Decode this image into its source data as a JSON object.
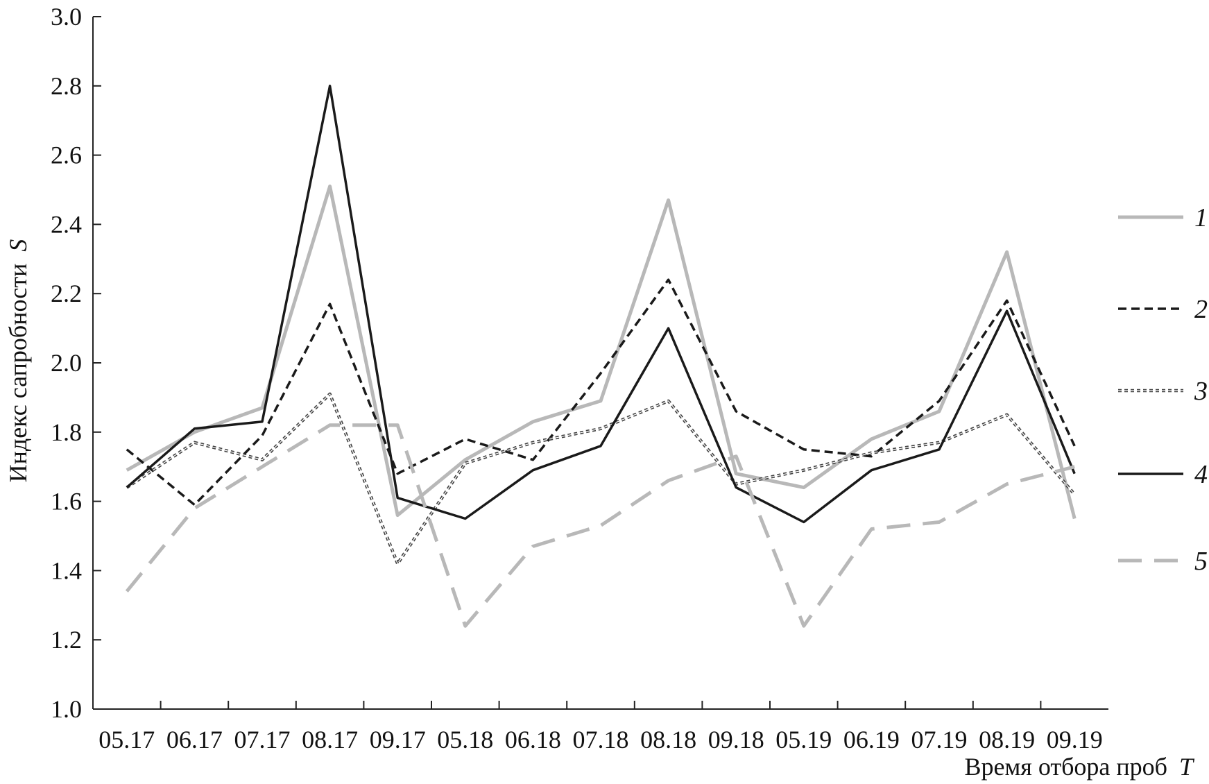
{
  "chart_data": {
    "type": "line",
    "xlabel": "Время отбора проб",
    "xlabel_var": "T",
    "ylabel": "Индекс сапробности",
    "ylabel_var": "S",
    "categories": [
      "05.17",
      "06.17",
      "07.17",
      "08.17",
      "09.17",
      "05.18",
      "06.18",
      "07.18",
      "08.18",
      "09.18",
      "05.19",
      "06.19",
      "07.19",
      "08.19",
      "09.19"
    ],
    "ylim": [
      1.0,
      3.0
    ],
    "yticks": [
      "1.0",
      "1.2",
      "1.4",
      "1.6",
      "1.8",
      "2.0",
      "2.2",
      "2.4",
      "2.6",
      "2.8",
      "3.0"
    ],
    "grid": false,
    "legend_position": "right",
    "series": [
      {
        "name": "1",
        "color": "#b8b8b8",
        "style": "solid-thick",
        "values": [
          1.69,
          1.8,
          1.87,
          2.51,
          1.56,
          1.72,
          1.83,
          1.89,
          2.47,
          1.68,
          1.64,
          1.78,
          1.86,
          2.32,
          1.55
        ]
      },
      {
        "name": "2",
        "color": "#1a1a1a",
        "style": "dashed",
        "values": [
          1.75,
          1.59,
          1.79,
          2.17,
          1.68,
          1.78,
          1.72,
          1.97,
          2.24,
          1.86,
          1.75,
          1.73,
          1.89,
          2.18,
          1.76
        ]
      },
      {
        "name": "3",
        "color": "#444444",
        "style": "dotted-thin",
        "values": [
          1.64,
          1.77,
          1.72,
          1.91,
          1.42,
          1.71,
          1.77,
          1.81,
          1.89,
          1.65,
          1.69,
          1.74,
          1.77,
          1.85,
          1.62
        ]
      },
      {
        "name": "4",
        "color": "#1a1a1a",
        "style": "solid",
        "values": [
          1.64,
          1.81,
          1.83,
          2.8,
          1.61,
          1.55,
          1.69,
          1.76,
          2.1,
          1.64,
          1.54,
          1.69,
          1.75,
          2.15,
          1.68
        ]
      },
      {
        "name": "5",
        "color": "#b8b8b8",
        "style": "long-dash",
        "values": [
          1.34,
          1.58,
          1.7,
          1.82,
          1.82,
          1.24,
          1.47,
          1.53,
          1.66,
          1.73,
          1.24,
          1.52,
          1.54,
          1.65,
          1.7
        ]
      }
    ]
  }
}
